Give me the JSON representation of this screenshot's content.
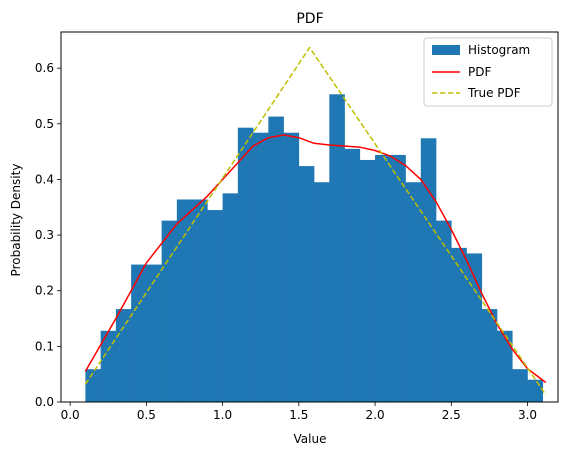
{
  "chart_data": {
    "type": "bar",
    "title": "PDF",
    "xlabel": "Value",
    "ylabel": "Probability Density",
    "xlim": [
      -0.06,
      3.2
    ],
    "ylim": [
      0,
      0.665
    ],
    "xticks": [
      0.0,
      0.5,
      1.0,
      1.5,
      2.0,
      2.5,
      3.0
    ],
    "xtick_labels": [
      "0.0",
      "0.5",
      "1.0",
      "1.5",
      "2.0",
      "2.5",
      "3.0"
    ],
    "yticks": [
      0.0,
      0.1,
      0.2,
      0.3,
      0.4,
      0.5,
      0.6
    ],
    "ytick_labels": [
      "0.0",
      "0.1",
      "0.2",
      "0.3",
      "0.4",
      "0.5",
      "0.6"
    ],
    "grid": false,
    "legend_position": "top-right",
    "colors": {
      "histogram": "#1f77b4",
      "pdf": "#ff0000",
      "true_pdf": "#bfbf00"
    },
    "histogram": {
      "name": "Histogram",
      "bin_edges": [
        0.1,
        0.2,
        0.3,
        0.4,
        0.5,
        0.6,
        0.7,
        0.8,
        0.9,
        1.0,
        1.1,
        1.2,
        1.3,
        1.4,
        1.5,
        1.6,
        1.7,
        1.8,
        1.9,
        2.0,
        2.1,
        2.2,
        2.3,
        2.4,
        2.5,
        2.6,
        2.7,
        2.8,
        2.9,
        3.0,
        3.1
      ],
      "densities": [
        0.059,
        0.128,
        0.167,
        0.247,
        0.247,
        0.326,
        0.364,
        0.364,
        0.345,
        0.375,
        0.493,
        0.484,
        0.513,
        0.484,
        0.424,
        0.395,
        0.553,
        0.455,
        0.435,
        0.444,
        0.444,
        0.395,
        0.474,
        0.326,
        0.277,
        0.267,
        0.167,
        0.128,
        0.059,
        0.04
      ]
    },
    "series": [
      {
        "name": "PDF",
        "style": "solid",
        "x": [
          0.1,
          0.3,
          0.5,
          0.7,
          0.9,
          1.1,
          1.2,
          1.3,
          1.4,
          1.5,
          1.6,
          1.7,
          1.9,
          2.0,
          2.1,
          2.2,
          2.3,
          2.4,
          2.5,
          2.6,
          2.7,
          2.8,
          2.9,
          3.0,
          3.12
        ],
        "y": [
          0.055,
          0.15,
          0.25,
          0.32,
          0.37,
          0.43,
          0.46,
          0.475,
          0.48,
          0.475,
          0.465,
          0.462,
          0.458,
          0.452,
          0.442,
          0.425,
          0.4,
          0.36,
          0.31,
          0.255,
          0.195,
          0.14,
          0.095,
          0.06,
          0.035
        ]
      },
      {
        "name": "True PDF",
        "style": "dashed",
        "x": [
          0.1,
          1.5708,
          3.12
        ],
        "y": [
          0.032,
          0.637,
          0.013
        ]
      }
    ],
    "legend": [
      "Histogram",
      "PDF",
      "True PDF"
    ]
  }
}
